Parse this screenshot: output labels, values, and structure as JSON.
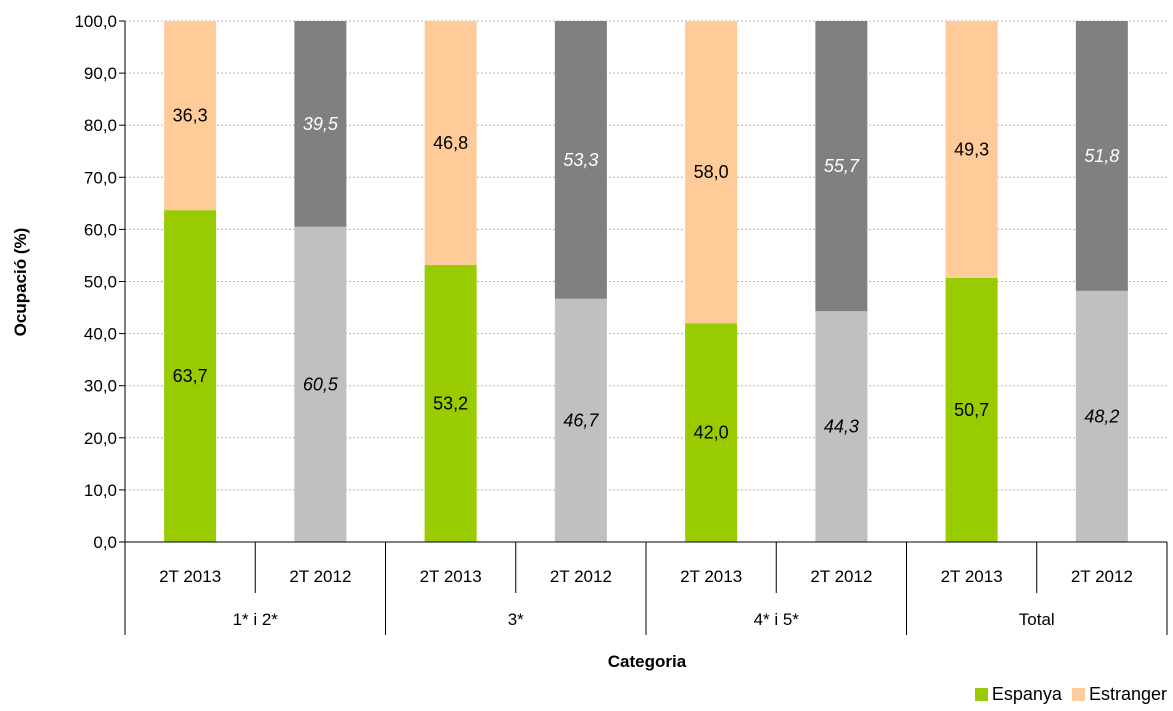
{
  "chart_data": {
    "type": "bar",
    "stacked": true,
    "xlabel": "Categoria",
    "ylabel": "Ocupació (%)",
    "ylim": [
      0,
      100
    ],
    "yticks": [
      "0,0",
      "10,0",
      "20,0",
      "30,0",
      "40,0",
      "50,0",
      "60,0",
      "70,0",
      "80,0",
      "90,0",
      "100,0"
    ],
    "grid": true,
    "legend_position": "bottom-right",
    "groups": [
      {
        "label": "1* i 2*",
        "bars": [
          {
            "label": "2T 2013",
            "espanya": 63.7,
            "estranger": 36.3,
            "espanya_text": "63,7",
            "estranger_text": "36,3"
          },
          {
            "label": "2T 2012",
            "espanya": 60.5,
            "estranger": 39.5,
            "espanya_text": "60,5",
            "estranger_text": "39,5"
          }
        ]
      },
      {
        "label": "3*",
        "bars": [
          {
            "label": "2T 2013",
            "espanya": 53.2,
            "estranger": 46.8,
            "espanya_text": "53,2",
            "estranger_text": "46,8"
          },
          {
            "label": "2T 2012",
            "espanya": 46.7,
            "estranger": 53.3,
            "espanya_text": "46,7",
            "estranger_text": "53,3"
          }
        ]
      },
      {
        "label": "4* i 5*",
        "bars": [
          {
            "label": "2T 2013",
            "espanya": 42.0,
            "estranger": 58.0,
            "espanya_text": "42,0",
            "estranger_text": "58,0"
          },
          {
            "label": "2T 2012",
            "espanya": 44.3,
            "estranger": 55.7,
            "espanya_text": "44,3",
            "estranger_text": "55,7"
          }
        ]
      },
      {
        "label": "Total",
        "bars": [
          {
            "label": "2T 2013",
            "espanya": 50.7,
            "estranger": 49.3,
            "espanya_text": "50,7",
            "estranger_text": "49,3"
          },
          {
            "label": "2T 2012",
            "espanya": 48.2,
            "estranger": 51.8,
            "espanya_text": "48,2",
            "estranger_text": "51,8"
          }
        ]
      }
    ],
    "series": [
      {
        "name": "Espanya",
        "key": "espanya"
      },
      {
        "name": "Estranger",
        "key": "estranger"
      }
    ],
    "colors": {
      "espanya_2013": "#99cc00",
      "estranger_2013": "#ffcc99",
      "espanya_2012": "#c0c0c0",
      "estranger_2012": "#808080",
      "label_dark": "#000000",
      "label_light": "#ffffff",
      "grid": "#b3b3b3",
      "axis": "#000000"
    }
  }
}
